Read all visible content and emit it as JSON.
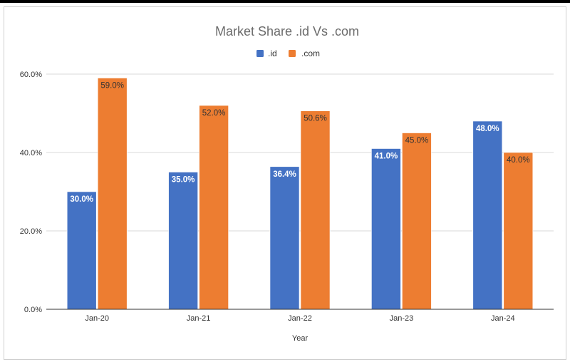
{
  "chart_data": {
    "type": "bar",
    "title": "Market Share .id Vs .com",
    "xlabel": "Year",
    "ylabel": "",
    "categories": [
      "Jan-20",
      "Jan-21",
      "Jan-22",
      "Jan-23",
      "Jan-24"
    ],
    "series": [
      {
        "name": ".id",
        "color": "#4472c4",
        "values": [
          30.0,
          35.0,
          36.4,
          41.0,
          48.0
        ],
        "labels": [
          "30.0%",
          "35.0%",
          "36.4%",
          "41.0%",
          "48.0%"
        ]
      },
      {
        "name": ".com",
        "color": "#ed7d31",
        "values": [
          59.0,
          52.0,
          50.6,
          45.0,
          40.0
        ],
        "labels": [
          "59.0%",
          "52.0%",
          "50.6%",
          "45.0%",
          "40.0%"
        ]
      }
    ],
    "ylim": [
      0,
      60
    ],
    "yticks": [
      0,
      20,
      40,
      60
    ],
    "ytick_labels": [
      "0.0%",
      "20.0%",
      "40.0%",
      "60.0%"
    ],
    "grid": true,
    "legend_position": "top-center"
  }
}
